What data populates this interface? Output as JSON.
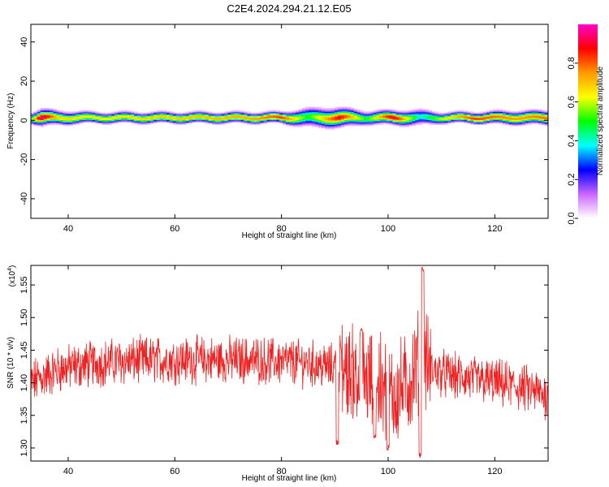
{
  "chart_data": [
    {
      "type": "heatmap",
      "title": "C2E4.2024.294.21.12.E05",
      "xlabel": "Height of straight line (km)",
      "ylabel": "Frequency (Hz)",
      "xlim": [
        33,
        130
      ],
      "ylim": [
        -50,
        49
      ],
      "xticks": [
        40,
        60,
        80,
        100,
        120
      ],
      "yticks": [
        -40,
        -20,
        0,
        20,
        40
      ],
      "colorbar": {
        "label": "Normalized spectral amplitude",
        "range": [
          0,
          1
        ],
        "ticks": [
          0.0,
          0.2,
          0.4,
          0.6,
          0.8
        ],
        "tick_labels": [
          "0.0",
          "0.2",
          "0.4",
          "0.6",
          "0.8"
        ],
        "colormap": [
          "#ffffff",
          "#cc66ff",
          "#0000ff",
          "#00ffff",
          "#00ff00",
          "#ffff00",
          "#ff9900",
          "#ff0000",
          "#ff00cc"
        ]
      },
      "band_profile": [
        {
          "x": 33,
          "spread": 4,
          "peak": 0.5
        },
        {
          "x": 35,
          "spread": 6,
          "peak": 1.0
        },
        {
          "x": 38,
          "spread": 5,
          "peak": 0.7
        },
        {
          "x": 45,
          "spread": 4,
          "peak": 0.65
        },
        {
          "x": 55,
          "spread": 4,
          "peak": 0.7
        },
        {
          "x": 65,
          "spread": 4,
          "peak": 0.72
        },
        {
          "x": 75,
          "spread": 4,
          "peak": 0.75
        },
        {
          "x": 80,
          "spread": 4,
          "peak": 0.85
        },
        {
          "x": 85,
          "spread": 7,
          "peak": 0.5
        },
        {
          "x": 91,
          "spread": 7,
          "peak": 0.9
        },
        {
          "x": 96,
          "spread": 5,
          "peak": 0.5
        },
        {
          "x": 101,
          "spread": 5,
          "peak": 0.95
        },
        {
          "x": 106,
          "spread": 6,
          "peak": 0.4
        },
        {
          "x": 110,
          "spread": 4,
          "peak": 0.6
        },
        {
          "x": 116,
          "spread": 4,
          "peak": 0.85
        },
        {
          "x": 124,
          "spread": 5,
          "peak": 0.75
        },
        {
          "x": 130,
          "spread": 5,
          "peak": 0.8
        }
      ]
    },
    {
      "type": "line",
      "xlabel": "Height of straight line (km)",
      "ylabel": "SNR (10 * v/v)",
      "y_multiplier": "(x10",
      "y_multiplier_exp": "4",
      "y_multiplier_close": ")",
      "xlim": [
        33,
        130
      ],
      "ylim": [
        1.28,
        1.58
      ],
      "xticks": [
        40,
        60,
        80,
        100,
        120
      ],
      "yticks": [
        1.3,
        1.35,
        1.4,
        1.45,
        1.5,
        1.55
      ],
      "ytick_labels": [
        "1.30",
        "1.35",
        "1.40",
        "1.45",
        "1.50",
        "1.55"
      ],
      "series": [
        {
          "name": "SNR",
          "color": "#ee2222",
          "mean": [
            [
              33,
              1.4
            ],
            [
              38,
              1.42
            ],
            [
              45,
              1.43
            ],
            [
              55,
              1.435
            ],
            [
              65,
              1.435
            ],
            [
              75,
              1.435
            ],
            [
              85,
              1.43
            ],
            [
              92,
              1.42
            ],
            [
              97,
              1.4
            ],
            [
              101,
              1.38
            ],
            [
              104,
              1.4
            ],
            [
              106,
              1.44
            ],
            [
              108,
              1.42
            ],
            [
              112,
              1.41
            ],
            [
              120,
              1.4
            ],
            [
              126,
              1.39
            ],
            [
              130,
              1.38
            ]
          ],
          "noise_amplitude": 0.03,
          "features": [
            {
              "x": 106.5,
              "y": 1.575
            },
            {
              "x": 106.0,
              "y": 1.29
            },
            {
              "x": 100.0,
              "y": 1.3
            },
            {
              "x": 97.5,
              "y": 1.32
            },
            {
              "x": 95.0,
              "y": 1.48
            },
            {
              "x": 90.5,
              "y": 1.31
            }
          ]
        }
      ]
    }
  ]
}
